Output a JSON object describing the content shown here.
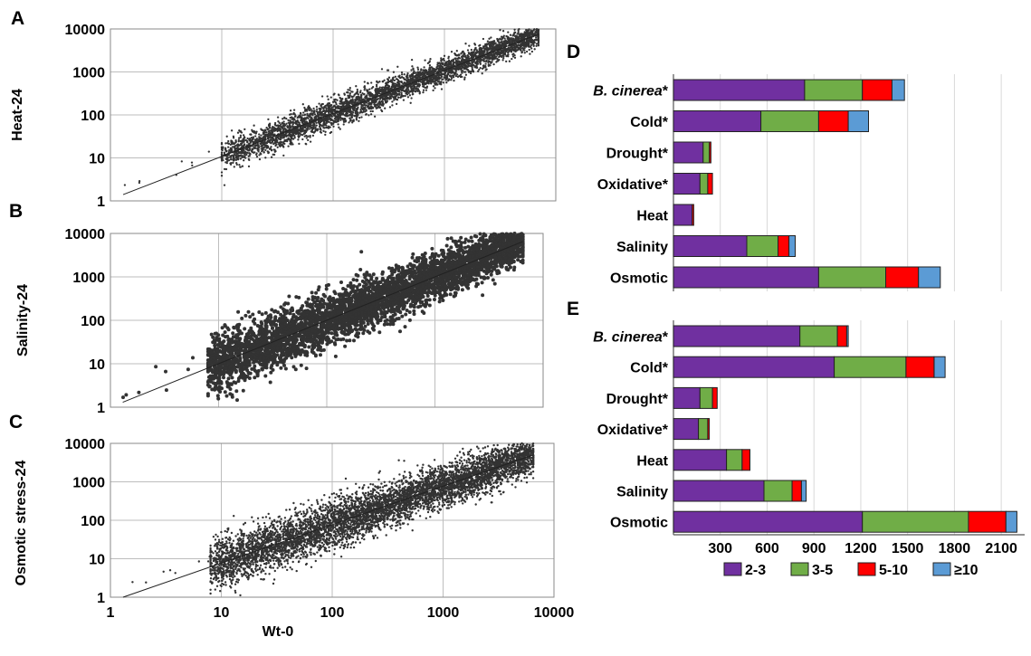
{
  "colors": {
    "point": "#333333",
    "fit_line": "#222222",
    "grid": "#bdbdbd",
    "frame": "#8a8a8a",
    "bar_2_3": "#7030a0",
    "bar_3_5": "#70ad47",
    "bar_5_10": "#ff0000",
    "bar_ge10": "#5b9bd5"
  },
  "chart_data": [
    {
      "panel": "A",
      "type": "scatter",
      "xlabel": "",
      "ylabel": "Heat-24",
      "xscale": "log",
      "yscale": "log",
      "xlim": [
        1,
        10000
      ],
      "ylim": [
        1,
        10000
      ],
      "x_ticks": [],
      "y_ticks": [
        "1",
        "10",
        "100",
        "1000",
        "10000"
      ],
      "grid": true,
      "fit_line": [
        [
          1.3,
          1.4
        ],
        [
          7000,
          7600
        ]
      ],
      "point_cloud": {
        "x_range": [
          10,
          7000
        ],
        "log_spread": 0.16
      }
    },
    {
      "panel": "B",
      "type": "scatter",
      "xlabel": "",
      "ylabel": "Salinity-24",
      "xscale": "log",
      "yscale": "log",
      "xlim": [
        1,
        10000
      ],
      "ylim": [
        1,
        10000
      ],
      "x_ticks": [],
      "y_ticks": [
        "1",
        "10",
        "100",
        "1000",
        "10000"
      ],
      "grid": true,
      "fit_line": [
        [
          1.3,
          1.3
        ],
        [
          6500,
          6500
        ]
      ],
      "point_cloud": {
        "x_range": [
          8,
          6500
        ],
        "log_spread": 0.3
      }
    },
    {
      "panel": "C",
      "type": "scatter",
      "xlabel": "Wt-0",
      "ylabel": "Osmotic stress-24",
      "xscale": "log",
      "yscale": "log",
      "xlim": [
        1,
        10000
      ],
      "ylim": [
        1,
        10000
      ],
      "x_ticks": [
        "1",
        "10",
        "100",
        "1000",
        "10000"
      ],
      "y_ticks": [
        "1",
        "10",
        "100",
        "1000",
        "10000"
      ],
      "grid": true,
      "fit_line": [
        [
          1.3,
          1.0
        ],
        [
          6500,
          5000
        ]
      ],
      "point_cloud": {
        "x_range": [
          8,
          6500
        ],
        "log_spread": 0.3
      }
    },
    {
      "panel": "D",
      "type": "bar",
      "orientation": "horizontal",
      "stacked": true,
      "categories": [
        "B. cinerea*",
        "Cold*",
        "Drought*",
        "Oxidative*",
        "Heat",
        "Salinity",
        "Osmotic"
      ],
      "series": [
        {
          "name": "2-3",
          "values": [
            840,
            560,
            190,
            170,
            120,
            470,
            930
          ]
        },
        {
          "name": "3-5",
          "values": [
            370,
            370,
            40,
            50,
            0,
            200,
            430
          ]
        },
        {
          "name": "5-10",
          "values": [
            190,
            190,
            10,
            30,
            10,
            70,
            210
          ]
        },
        {
          "name": "≥10",
          "values": [
            80,
            130,
            0,
            0,
            0,
            40,
            140
          ]
        }
      ],
      "xlim": [
        0,
        2250
      ],
      "grid": true
    },
    {
      "panel": "E",
      "type": "bar",
      "orientation": "horizontal",
      "stacked": true,
      "categories": [
        "B. cinerea*",
        "Cold*",
        "Drought*",
        "Oxidative*",
        "Heat",
        "Salinity",
        "Osmotic"
      ],
      "series": [
        {
          "name": "2-3",
          "values": [
            810,
            1030,
            170,
            160,
            340,
            580,
            1210
          ]
        },
        {
          "name": "3-5",
          "values": [
            240,
            460,
            80,
            60,
            100,
            180,
            680
          ]
        },
        {
          "name": "5-10",
          "values": [
            60,
            180,
            30,
            10,
            50,
            60,
            240
          ]
        },
        {
          "name": "≥10",
          "values": [
            10,
            70,
            0,
            0,
            0,
            30,
            70
          ]
        }
      ],
      "x_ticks": [
        "300",
        "600",
        "900",
        "1200",
        "1500",
        "1800",
        "2100"
      ],
      "x_tick_values": [
        300,
        600,
        900,
        1200,
        1500,
        1800,
        2100
      ],
      "xlim": [
        0,
        2250
      ],
      "grid": true
    }
  ],
  "panels": {
    "A": "A",
    "B": "B",
    "C": "C",
    "D": "D",
    "E": "E"
  },
  "legend": [
    {
      "label": "2-3",
      "color": "#7030a0"
    },
    {
      "label": "3-5",
      "color": "#70ad47"
    },
    {
      "label": "5-10",
      "color": "#ff0000"
    },
    {
      "label": "≥10",
      "color": "#5b9bd5"
    }
  ]
}
